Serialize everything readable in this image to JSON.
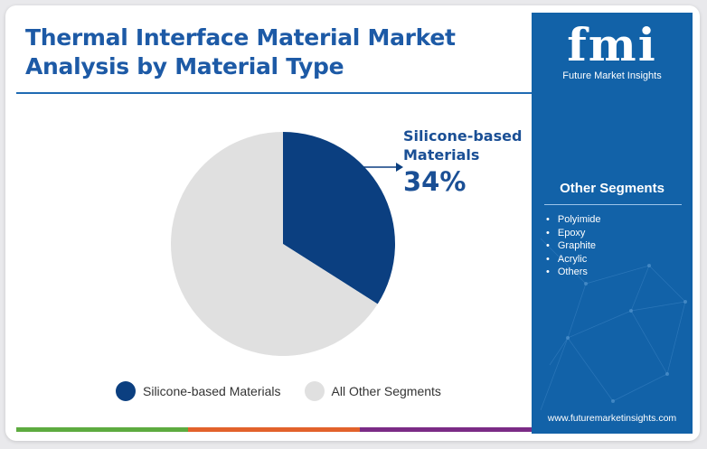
{
  "header": {
    "title": "Thermal Interface Material Market Analysis by Material Type"
  },
  "chart_data": {
    "type": "pie",
    "title": "Thermal Interface Material Market Analysis by Material Type",
    "slices": [
      {
        "label": "Silicone-based Materials",
        "value": 34,
        "color": "#0b3f80"
      },
      {
        "label": "All Other Segments",
        "value": 66,
        "color": "#e0e0e0"
      }
    ],
    "callout": {
      "label": "Silicone-based Materials",
      "value_text": "34%"
    },
    "legend_position": "bottom"
  },
  "brand": {
    "logo_text": "fmi",
    "name": "Future Market Insights",
    "website": "www.futuremarketinsights.com",
    "color": "#1262a8"
  },
  "sidebar": {
    "title": "Other Segments",
    "items": [
      "Polyimide",
      "Epoxy",
      "Graphite",
      "Acrylic",
      "Others"
    ]
  },
  "colors": {
    "accent_bar": [
      "#5dab3f",
      "#e2622b",
      "#7b2b86"
    ]
  }
}
